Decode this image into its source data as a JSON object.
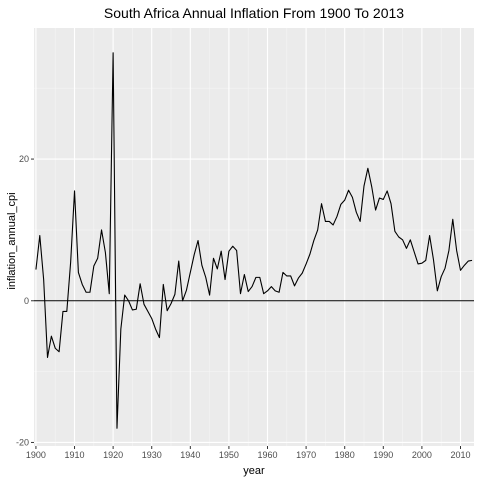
{
  "chart_data": {
    "type": "line",
    "title": "South Africa Annual Inflation From 1900 To 2013",
    "xlabel": "year",
    "ylabel": "inflation_annual_cpi",
    "xlim": [
      1899.5,
      2013.5
    ],
    "ylim": [
      -20.5,
      38.5
    ],
    "x_ticks": [
      1900,
      1910,
      1920,
      1930,
      1940,
      1950,
      1960,
      1970,
      1980,
      1990,
      2000,
      2010
    ],
    "y_ticks": [
      -20,
      0,
      20
    ],
    "grid": true,
    "reference_line_y": 0,
    "series": [
      {
        "points": [
          [
            1900,
            4.4
          ],
          [
            1901,
            9.2
          ],
          [
            1902,
            3.0
          ],
          [
            1903,
            -8.0
          ],
          [
            1904,
            -5.0
          ],
          [
            1905,
            -6.7
          ],
          [
            1906,
            -7.2
          ],
          [
            1907,
            -1.5
          ],
          [
            1908,
            -1.5
          ],
          [
            1909,
            5.5
          ],
          [
            1910,
            15.5
          ],
          [
            1911,
            4.0
          ],
          [
            1912,
            2.3
          ],
          [
            1913,
            1.2
          ],
          [
            1914,
            1.2
          ],
          [
            1915,
            4.9
          ],
          [
            1916,
            6.0
          ],
          [
            1917,
            10.0
          ],
          [
            1918,
            6.8
          ],
          [
            1919,
            1.0
          ],
          [
            1920,
            35.0
          ],
          [
            1921,
            -18.0
          ],
          [
            1922,
            -4.0
          ],
          [
            1923,
            0.8
          ],
          [
            1924,
            0.0
          ],
          [
            1925,
            -1.3
          ],
          [
            1926,
            -1.2
          ],
          [
            1927,
            2.4
          ],
          [
            1928,
            -0.5
          ],
          [
            1929,
            -1.5
          ],
          [
            1930,
            -2.5
          ],
          [
            1931,
            -4.0
          ],
          [
            1932,
            -5.2
          ],
          [
            1933,
            2.3
          ],
          [
            1934,
            -1.4
          ],
          [
            1935,
            -0.4
          ],
          [
            1936,
            0.9
          ],
          [
            1937,
            5.6
          ],
          [
            1938,
            0.0
          ],
          [
            1939,
            1.5
          ],
          [
            1940,
            4.0
          ],
          [
            1941,
            6.5
          ],
          [
            1942,
            8.5
          ],
          [
            1943,
            5.0
          ],
          [
            1944,
            3.3
          ],
          [
            1945,
            0.8
          ],
          [
            1946,
            6.0
          ],
          [
            1947,
            4.5
          ],
          [
            1948,
            7.0
          ],
          [
            1949,
            3.0
          ],
          [
            1950,
            7.0
          ],
          [
            1951,
            7.7
          ],
          [
            1952,
            7.1
          ],
          [
            1953,
            1.0
          ],
          [
            1954,
            3.7
          ],
          [
            1955,
            1.3
          ],
          [
            1956,
            2.0
          ],
          [
            1957,
            3.3
          ],
          [
            1958,
            3.3
          ],
          [
            1959,
            1.0
          ],
          [
            1960,
            1.4
          ],
          [
            1961,
            2.0
          ],
          [
            1962,
            1.4
          ],
          [
            1963,
            1.2
          ],
          [
            1964,
            4.0
          ],
          [
            1965,
            3.5
          ],
          [
            1966,
            3.5
          ],
          [
            1967,
            2.1
          ],
          [
            1968,
            3.2
          ],
          [
            1969,
            3.9
          ],
          [
            1970,
            5.2
          ],
          [
            1971,
            6.6
          ],
          [
            1972,
            8.5
          ],
          [
            1973,
            10.0
          ],
          [
            1974,
            13.7
          ],
          [
            1975,
            11.2
          ],
          [
            1976,
            11.2
          ],
          [
            1977,
            10.7
          ],
          [
            1978,
            11.9
          ],
          [
            1979,
            13.6
          ],
          [
            1980,
            14.2
          ],
          [
            1981,
            15.6
          ],
          [
            1982,
            14.6
          ],
          [
            1983,
            12.5
          ],
          [
            1984,
            11.2
          ],
          [
            1985,
            16.2
          ],
          [
            1986,
            18.7
          ],
          [
            1987,
            16.1
          ],
          [
            1988,
            12.8
          ],
          [
            1989,
            14.5
          ],
          [
            1990,
            14.3
          ],
          [
            1991,
            15.5
          ],
          [
            1992,
            13.7
          ],
          [
            1993,
            9.8
          ],
          [
            1994,
            9.0
          ],
          [
            1995,
            8.6
          ],
          [
            1996,
            7.4
          ],
          [
            1997,
            8.6
          ],
          [
            1998,
            6.9
          ],
          [
            1999,
            5.2
          ],
          [
            2000,
            5.3
          ],
          [
            2001,
            5.7
          ],
          [
            2002,
            9.2
          ],
          [
            2003,
            5.8
          ],
          [
            2004,
            1.4
          ],
          [
            2005,
            3.4
          ],
          [
            2006,
            4.6
          ],
          [
            2007,
            7.1
          ],
          [
            2008,
            11.5
          ],
          [
            2009,
            7.1
          ],
          [
            2010,
            4.3
          ],
          [
            2011,
            5.0
          ],
          [
            2012,
            5.6
          ],
          [
            2013,
            5.7
          ]
        ]
      }
    ]
  }
}
